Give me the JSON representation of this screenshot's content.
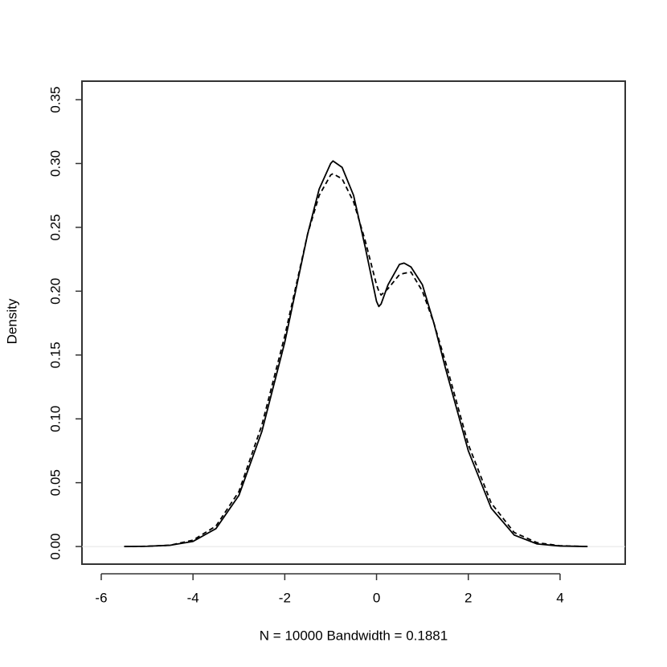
{
  "chart_data": {
    "type": "line",
    "x_label": "N = 10000   Bandwidth = 0.1881",
    "y_label": "Density",
    "x": [
      -5.5,
      -5,
      -4.5,
      -4,
      -3.5,
      -3,
      -2.5,
      -2,
      -1.5,
      -1.25,
      -1,
      -0.95,
      -0.75,
      -0.5,
      -0.25,
      0,
      0.05,
      0.1,
      0.25,
      0.5,
      0.6,
      0.75,
      1,
      1.25,
      1.5,
      2,
      2.5,
      3,
      3.5,
      4,
      4.6
    ],
    "series": [
      {
        "color": "#000000",
        "dash": false,
        "values": [
          0,
          0.0002,
          0.001,
          0.004,
          0.014,
          0.04,
          0.09,
          0.16,
          0.245,
          0.28,
          0.3,
          0.302,
          0.297,
          0.275,
          0.235,
          0.192,
          0.188,
          0.19,
          0.205,
          0.221,
          0.222,
          0.219,
          0.205,
          0.175,
          0.14,
          0.075,
          0.03,
          0.009,
          0.002,
          0.0004,
          0
        ]
      },
      {
        "color": "#000000",
        "dash": true,
        "values": [
          0,
          0.0002,
          0.001,
          0.005,
          0.016,
          0.043,
          0.095,
          0.165,
          0.245,
          0.275,
          0.291,
          0.292,
          0.288,
          0.27,
          0.24,
          0.205,
          0.2,
          0.197,
          0.202,
          0.213,
          0.214,
          0.215,
          0.2,
          0.175,
          0.145,
          0.08,
          0.034,
          0.011,
          0.003,
          0.0006,
          0
        ]
      }
    ],
    "xlim": [
      -6.42,
      5.42
    ],
    "ylim": [
      -0.0138,
      0.3645
    ],
    "xticks": [
      -6,
      -4,
      -2,
      0,
      2,
      4
    ],
    "yticks": [
      {
        "value": 0,
        "label": "0.00"
      },
      {
        "value": 0.05,
        "label": "0.05"
      },
      {
        "value": 0.1,
        "label": "0.10"
      },
      {
        "value": 0.15,
        "label": "0.15"
      },
      {
        "value": 0.2,
        "label": "0.20"
      },
      {
        "value": 0.25,
        "label": "0.25"
      },
      {
        "value": 0.3,
        "label": "0.30"
      },
      {
        "value": 0.35,
        "label": "0.35"
      }
    ],
    "zero_line": true
  }
}
